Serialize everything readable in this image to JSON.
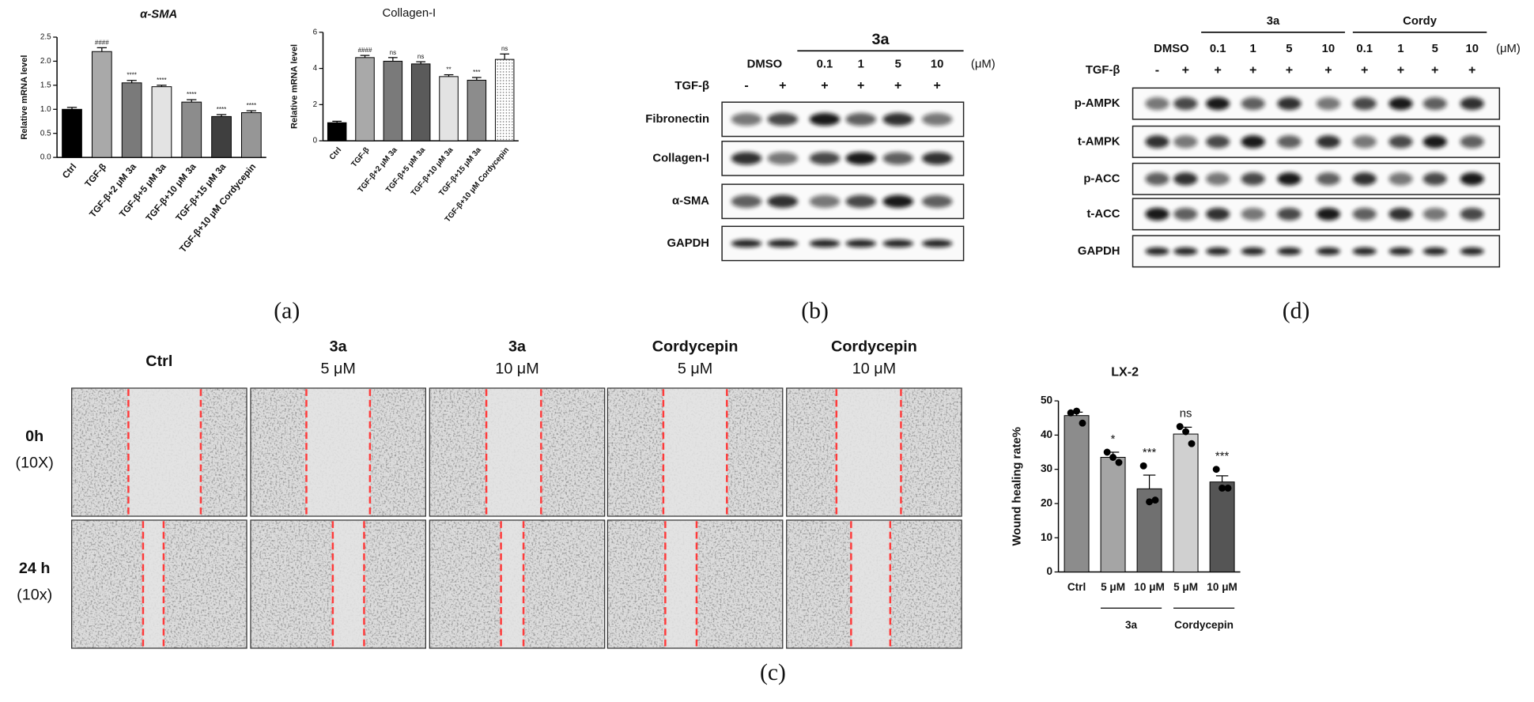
{
  "chart_data": [
    {
      "type": "bar",
      "title": "α-SMA",
      "ylabel": "Relative mRNA level",
      "categories": [
        "Ctrl",
        "TGF-β",
        "TGF-β+2 μM 3a",
        "TGF-β+5 μM 3a",
        "TGF-β+10 μM 3a",
        "TGF-β+15 μM 3a",
        "TGF-β+10 μM Cordycepin"
      ],
      "values": [
        1.0,
        2.2,
        1.55,
        1.47,
        1.15,
        0.85,
        0.93
      ],
      "errors": [
        0.04,
        0.08,
        0.05,
        0.03,
        0.05,
        0.04,
        0.04
      ],
      "annotations": [
        null,
        "####",
        "****",
        "****",
        "****",
        "****",
        "****"
      ],
      "colors": [
        "#000000",
        "#a9a9a9",
        "#7a7a7a",
        "#e3e3e3",
        "#8c8c8c",
        "#3f3f3f",
        "#969696"
      ],
      "ylim": [
        0,
        2.5
      ],
      "yticks": [
        {
          "value": 0,
          "label": "0.0"
        },
        0.5,
        {
          "value": 1,
          "label": "1.0"
        },
        1.5,
        {
          "value": 2,
          "label": "2.0"
        },
        2.5
      ]
    },
    {
      "type": "bar",
      "title": "Collagen-I",
      "ylabel": "Relative mRNA level",
      "categories": [
        "Ctrl",
        "TGF-β",
        "TGF-β+2 μM 3a",
        "TGF-β+5 μM 3a",
        "TGF-β+10 μM 3a",
        "TGF-β+15 μM 3a",
        "TGF-β+10 μM Cordycepin"
      ],
      "values": [
        1.0,
        4.6,
        4.4,
        4.25,
        3.55,
        3.35,
        4.5
      ],
      "errors": [
        0.08,
        0.12,
        0.2,
        0.12,
        0.1,
        0.15,
        0.3
      ],
      "annotations": [
        null,
        "####",
        "ns",
        "ns",
        "**",
        "***",
        "ns"
      ],
      "colors": [
        "#000000",
        "#a9a9a9",
        "#7a7a7a",
        "#5a5a5a",
        "#e3e3e3",
        "#8c8c8c",
        "#ffffff"
      ],
      "ylim": [
        0,
        6
      ],
      "yticks": [
        0,
        2,
        4,
        6
      ]
    },
    {
      "type": "bar",
      "title": "LX-2",
      "ylabel": "Wound healing rate%",
      "categories": [
        "Ctrl",
        "5 μM",
        "10 μM",
        "5 μM",
        "10 μM"
      ],
      "values": [
        45.7,
        33.5,
        24.3,
        40.3,
        26.3
      ],
      "errors": [
        1.0,
        1.5,
        4.0,
        2.0,
        1.8
      ],
      "points": [
        [
          46.5,
          43.5,
          47
        ],
        [
          35,
          32,
          33.5
        ],
        [
          31,
          21,
          20.5
        ],
        [
          42.5,
          37.5,
          41
        ],
        [
          30,
          24.5,
          24.5
        ]
      ],
      "annotations": [
        null,
        "*",
        "***",
        "ns",
        "***"
      ],
      "group_labels": [
        "3a",
        "Cordycepin"
      ],
      "colors": [
        "#8c8c8c",
        "#a5a5a5",
        "#707070",
        "#d0d0d0",
        "#555555"
      ],
      "ylim": [
        0,
        50
      ],
      "yticks": [
        0,
        10,
        20,
        30,
        40,
        50
      ]
    }
  ],
  "panel_labels": [
    "(a)",
    "(b)",
    "(c)",
    "(d)"
  ],
  "blot_b": {
    "dmso": "DMSO",
    "group": "3a",
    "doses": [
      "0.1",
      "1",
      "5",
      "10"
    ],
    "unit": "(μM)",
    "treatment": "TGF-β",
    "signs": [
      "-",
      "+",
      "+",
      "+",
      "+",
      "+"
    ],
    "rows": [
      "Fibronectin",
      "Collagen-I",
      "α-SMA",
      "GAPDH"
    ]
  },
  "blot_d": {
    "dmso": "DMSO",
    "groups": [
      "3a",
      "Cordy"
    ],
    "doses": [
      "0.1",
      "1",
      "5",
      "10",
      "0.1",
      "1",
      "5",
      "10"
    ],
    "unit": "(μM)",
    "treatment": "TGF-β",
    "signs": [
      "-",
      "+",
      "+",
      "+",
      "+",
      "+",
      "+",
      "+",
      "+",
      "+"
    ],
    "rows": [
      "p-AMPK",
      "t-AMPK",
      "p-ACC",
      "t-ACC",
      "GAPDH"
    ]
  },
  "wound": {
    "columns": [
      [
        "Ctrl"
      ],
      [
        "3a",
        "5 μM"
      ],
      [
        "3a",
        "10 μM"
      ],
      [
        "Cordycepin",
        "5 μM"
      ],
      [
        "Cordycepin",
        "10 μM"
      ]
    ],
    "rows": [
      [
        "0h",
        "(10X)"
      ],
      [
        "24 h",
        "(10x)"
      ]
    ]
  }
}
